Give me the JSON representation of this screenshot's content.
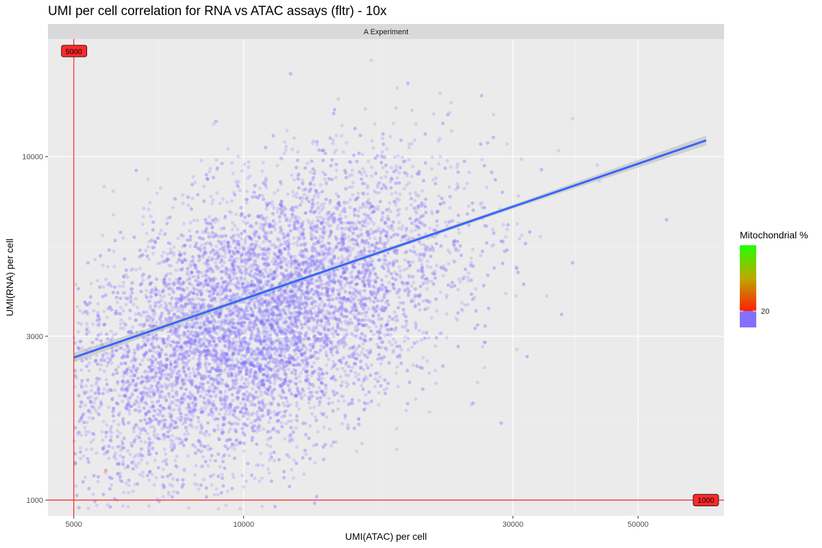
{
  "chart_data": {
    "type": "scatter",
    "title": "UMI per cell correlation for RNA vs ATAC assays (fltr) - 10x",
    "facet": "A Experiment",
    "xlabel": "UMI(ATAC) per cell",
    "ylabel": "UMI(RNA) per cell",
    "x_scale": "log10",
    "y_scale": "log10",
    "xlim": [
      4500,
      71000
    ],
    "ylim": [
      900,
      22000
    ],
    "x_ticks": [
      5000,
      10000,
      30000,
      50000
    ],
    "x_tick_labels": [
      "5000",
      "10000",
      "30000",
      "50000"
    ],
    "x_minor_ticks": [
      7071,
      17321,
      38730
    ],
    "y_ticks": [
      1000,
      3000,
      10000
    ],
    "y_tick_labels": [
      "1000",
      "3000",
      "10000"
    ],
    "y_minor_ticks": [
      1732,
      5477
    ],
    "grid": true,
    "point_color": "#8470ff",
    "point_opacity": 0.22,
    "point_count": 9000,
    "point_cloud": {
      "centre": {
        "x": 10500,
        "y": 3300
      },
      "log_sd": {
        "x": 0.17,
        "y": 0.22
      },
      "correlation": 0.5,
      "x_min": 5000
    },
    "low_mito_outlier": {
      "x": 5700,
      "y": 1220
    },
    "regression": {
      "color": "#3366ff",
      "ci_color": "#bdbdbd",
      "points": [
        {
          "x": 5000,
          "y": 2600
        },
        {
          "x": 10000,
          "y": 3850
        },
        {
          "x": 30000,
          "y": 7150
        },
        {
          "x": 66000,
          "y": 11150
        }
      ]
    },
    "thresholds": {
      "color": "#ff2a2a",
      "x_cutoff": {
        "value": 5000,
        "label": "5000"
      },
      "y_cutoff": {
        "value": 1000,
        "label": "1000"
      }
    },
    "legend": {
      "title": "Mitochondrial %",
      "placement": "right",
      "gradient_top": "#22ff00",
      "gradient_middle": "#bbaa00",
      "gradient_bottom": "#ff1f00",
      "below_color": "#8470ff",
      "labels": [
        "20"
      ]
    }
  }
}
